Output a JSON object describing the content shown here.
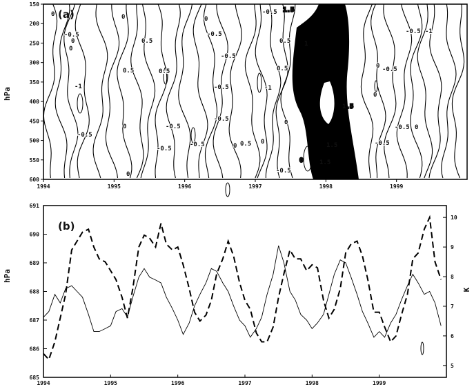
{
  "chart_data": [
    {
      "panel": "(a)",
      "type": "contour",
      "ylabel": "hPa",
      "x_ticks": [
        "1994",
        "1995",
        "1996",
        "1997",
        "1998",
        "1999"
      ],
      "y_ticks": [
        "150",
        "200",
        "250",
        "300",
        "350",
        "400",
        "450",
        "500",
        "550",
        "600"
      ],
      "xlim": [
        1994.0,
        2000.0
      ],
      "ylim": [
        600,
        150
      ],
      "contour_labels": [
        "0",
        "-0.5",
        "-1",
        "0.5",
        "1",
        "1.5"
      ],
      "shaded_region": "1998"
    },
    {
      "panel": "(b)",
      "type": "line",
      "ylabel_left": "hPa",
      "ylabel_right": "K",
      "x_ticks": [
        "1994",
        "1995",
        "1996",
        "1997",
        "1998",
        "1999"
      ],
      "left_ticks": [
        "685",
        "686",
        "687",
        "688",
        "689",
        "690",
        "691"
      ],
      "right_ticks": [
        "5",
        "6",
        "7",
        "8",
        "9",
        "10"
      ],
      "xlim": [
        1994.0,
        2000.0
      ],
      "ylim_left": [
        685,
        691
      ],
      "ylim_right": [
        4.6,
        10.4
      ],
      "x": [
        1994.0,
        1994.08,
        1994.17,
        1994.25,
        1994.33,
        1994.42,
        1994.5,
        1994.58,
        1994.67,
        1994.75,
        1994.83,
        1994.92,
        1995.0,
        1995.08,
        1995.17,
        1995.25,
        1995.33,
        1995.42,
        1995.5,
        1995.58,
        1995.67,
        1995.75,
        1995.83,
        1995.92,
        1996.0,
        1996.08,
        1996.17,
        1996.25,
        1996.33,
        1996.42,
        1996.5,
        1996.58,
        1996.67,
        1996.75,
        1996.83,
        1996.92,
        1997.0,
        1997.08,
        1997.17,
        1997.25,
        1997.33,
        1997.42,
        1997.5,
        1997.58,
        1997.67,
        1997.75,
        1997.83,
        1997.92,
        1998.0,
        1998.08,
        1998.17,
        1998.25,
        1998.33,
        1998.42,
        1998.5,
        1998.58,
        1998.67,
        1998.75,
        1998.83,
        1998.92,
        1999.0,
        1999.08,
        1999.17,
        1999.25,
        1999.33,
        1999.42,
        1999.5,
        1999.58,
        1999.67,
        1999.75,
        1999.83,
        1999.92
      ],
      "series": [
        {
          "style": "solid",
          "axis": "left",
          "values": [
            687.1,
            687.3,
            687.9,
            687.6,
            688.1,
            688.2,
            688.0,
            687.8,
            687.2,
            686.6,
            686.6,
            686.7,
            686.8,
            687.3,
            687.4,
            687.1,
            687.8,
            688.5,
            688.8,
            688.5,
            688.4,
            688.3,
            687.8,
            687.4,
            687.0,
            686.5,
            686.9,
            687.5,
            687.9,
            688.3,
            688.8,
            688.7,
            688.3,
            688.0,
            687.5,
            687.0,
            686.8,
            686.4,
            686.7,
            687.1,
            687.9,
            688.6,
            689.6,
            689.0,
            688.0,
            687.7,
            687.2,
            687.0,
            686.7,
            686.9,
            687.2,
            687.9,
            688.6,
            689.1,
            689.0,
            688.5,
            687.9,
            687.3,
            686.9,
            686.4,
            686.6,
            686.4,
            686.9,
            687.2,
            687.7,
            688.2,
            688.6,
            688.3,
            687.9,
            688.0,
            687.6,
            686.8
          ]
        },
        {
          "style": "dashed",
          "axis": "right",
          "values": [
            5.4,
            5.2,
            5.8,
            6.6,
            7.4,
            8.9,
            9.2,
            9.5,
            9.6,
            9.0,
            8.6,
            8.5,
            8.2,
            7.9,
            7.3,
            6.6,
            7.6,
            9.0,
            9.4,
            9.3,
            9.0,
            9.8,
            9.1,
            8.9,
            9.0,
            8.4,
            7.6,
            6.8,
            6.5,
            6.7,
            7.2,
            8.1,
            8.6,
            9.2,
            8.7,
            7.8,
            7.2,
            6.9,
            6.1,
            5.8,
            5.8,
            6.3,
            7.3,
            8.1,
            8.9,
            8.6,
            8.6,
            8.2,
            8.4,
            8.3,
            7.2,
            6.6,
            6.9,
            7.6,
            8.8,
            9.1,
            9.2,
            8.7,
            7.9,
            6.8,
            6.8,
            6.3,
            5.8,
            6.0,
            6.7,
            7.4,
            8.6,
            8.8,
            9.6,
            10.0,
            8.5,
            7.9
          ]
        }
      ]
    }
  ]
}
